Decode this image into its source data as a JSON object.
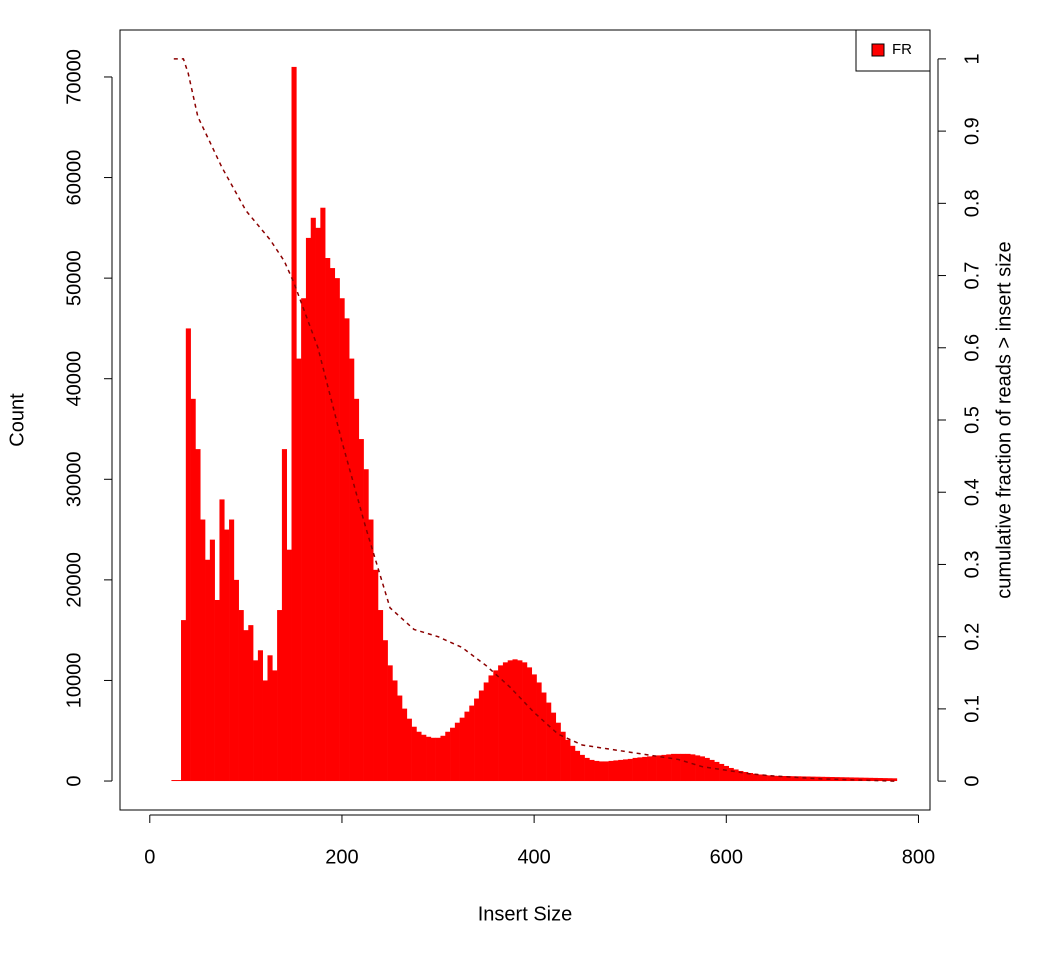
{
  "chart_data": {
    "type": "bar",
    "x_label": "Insert Size",
    "y_label": "Count",
    "y2_label": "cumulative fraction of reads > insert size",
    "xlim": [
      -31,
      812
    ],
    "ylim": [
      -2880,
      74670
    ],
    "y2lim": [
      -0.04,
      1.04
    ],
    "xticks": [
      0,
      200,
      400,
      600,
      800
    ],
    "yticks": [
      0,
      10000,
      20000,
      30000,
      40000,
      50000,
      60000,
      70000
    ],
    "y2ticks": [
      0,
      0.1,
      0.2,
      0.3,
      0.4,
      0.5,
      0.6,
      0.7,
      0.8,
      0.9,
      1
    ],
    "legend": "topright",
    "series": [
      {
        "name": "FR",
        "color": "#ff0000",
        "bin_width": 5,
        "x": [
          25,
          30,
          35,
          40,
          45,
          50,
          55,
          60,
          65,
          70,
          75,
          80,
          85,
          90,
          95,
          100,
          105,
          110,
          115,
          120,
          125,
          130,
          135,
          140,
          145,
          150,
          155,
          160,
          165,
          170,
          175,
          180,
          185,
          190,
          195,
          200,
          205,
          210,
          215,
          220,
          225,
          230,
          235,
          240,
          245,
          250,
          255,
          260,
          265,
          270,
          275,
          280,
          285,
          290,
          295,
          300,
          305,
          310,
          315,
          320,
          325,
          330,
          335,
          340,
          345,
          350,
          355,
          360,
          365,
          370,
          375,
          380,
          385,
          390,
          395,
          400,
          405,
          410,
          415,
          420,
          425,
          430,
          435,
          440,
          445,
          450,
          455,
          460,
          465,
          470,
          475,
          480,
          485,
          490,
          495,
          500,
          505,
          510,
          515,
          520,
          525,
          530,
          535,
          540,
          545,
          550,
          555,
          560,
          565,
          570,
          575,
          580,
          585,
          590,
          595,
          600,
          605,
          610,
          615,
          620,
          625,
          630,
          635,
          640,
          645,
          650,
          655,
          660,
          665,
          670,
          675,
          680,
          685,
          690,
          695,
          700,
          705,
          710,
          715,
          720,
          725,
          730,
          735,
          740,
          745,
          750,
          755,
          760,
          765,
          770,
          775
        ],
        "values": [
          0,
          0,
          16000,
          45000,
          38000,
          33000,
          26000,
          22000,
          24000,
          18000,
          28000,
          25000,
          26000,
          20000,
          17000,
          15000,
          15500,
          12000,
          13000,
          10000,
          12500,
          11000,
          17000,
          33000,
          23000,
          71000,
          42000,
          48000,
          54000,
          56000,
          55000,
          57000,
          52000,
          51000,
          50000,
          48000,
          46000,
          42000,
          38000,
          34000,
          31000,
          26000,
          21000,
          17000,
          14000,
          11500,
          10000,
          8500,
          7200,
          6200,
          5400,
          4900,
          4600,
          4400,
          4300,
          4300,
          4500,
          4900,
          5300,
          5800,
          6300,
          6900,
          7500,
          8200,
          9000,
          9800,
          10500,
          11000,
          11500,
          11800,
          12000,
          12100,
          12000,
          11800,
          11300,
          10600,
          9800,
          8800,
          7800,
          6800,
          5800,
          4900,
          4100,
          3500,
          3000,
          2600,
          2300,
          2100,
          2000,
          1950,
          1950,
          2000,
          2050,
          2100,
          2150,
          2200,
          2300,
          2350,
          2400,
          2450,
          2500,
          2550,
          2600,
          2650,
          2700,
          2700,
          2700,
          2700,
          2650,
          2550,
          2450,
          2300,
          2100,
          1900,
          1700,
          1500,
          1300,
          1150,
          1000,
          900,
          800,
          720,
          650,
          600,
          560,
          520,
          510,
          500,
          490,
          480,
          470,
          460,
          450,
          440,
          430,
          420,
          410,
          400,
          390,
          380,
          370,
          360,
          350,
          340,
          330,
          320,
          310,
          300,
          290,
          280,
          270
        ]
      },
      {
        "type": "line",
        "axis": "y2",
        "color": "#8b0000",
        "dashed": true,
        "x": [
          25,
          35,
          40,
          50,
          75,
          100,
          125,
          140,
          150,
          175,
          200,
          225,
          250,
          275,
          300,
          325,
          350,
          375,
          400,
          425,
          450,
          475,
          500,
          525,
          550,
          575,
          600,
          625,
          650,
          700,
          775
        ],
        "values": [
          1,
          1,
          0.98,
          0.92,
          0.85,
          0.79,
          0.75,
          0.72,
          0.69,
          0.6,
          0.47,
          0.35,
          0.24,
          0.21,
          0.2,
          0.185,
          0.16,
          0.13,
          0.095,
          0.065,
          0.05,
          0.045,
          0.04,
          0.035,
          0.03,
          0.02,
          0.015,
          0.01,
          0.007,
          0.003,
          0
        ]
      }
    ]
  }
}
